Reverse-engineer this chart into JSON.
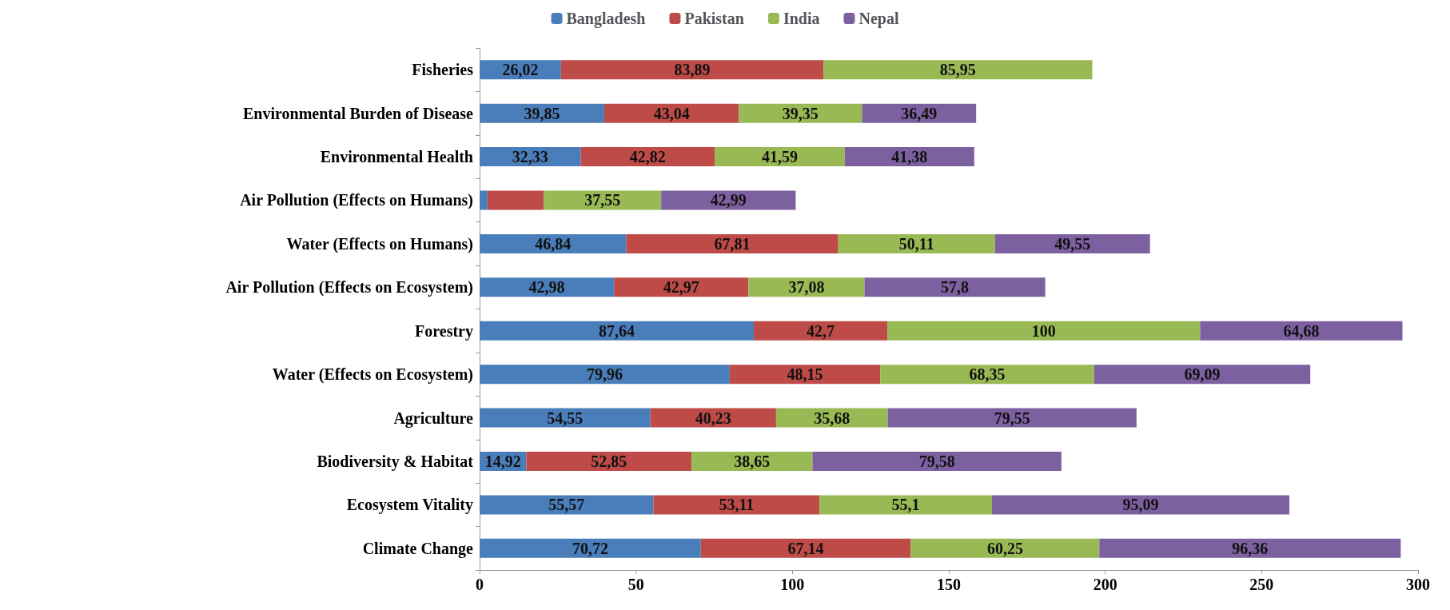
{
  "chart_data": {
    "type": "bar",
    "orientation": "horizontal",
    "stacked": true,
    "legend": "top",
    "grid": false,
    "categories": [
      "Fisheries",
      "Environmental Burden of Disease",
      "Environmental Health",
      "Air Pollution (Effects on Humans)",
      "Water (Effects on Humans)",
      "Air Pollution (Effects on Ecosystem)",
      "Forestry",
      "Water (Effects on Ecosystem)",
      "Agriculture",
      "Biodiversity & Habitat",
      "Ecosystem Vitality",
      "Climate Change"
    ],
    "xlim": [
      0,
      300
    ],
    "xticks": [
      0,
      50,
      100,
      150,
      200,
      250,
      300
    ],
    "series": [
      {
        "name": "Bangladesh",
        "color": "#4a7ebb",
        "values": [
          26.02,
          39.85,
          32.33,
          2.5,
          46.84,
          42.98,
          87.64,
          79.96,
          54.55,
          14.92,
          55.57,
          70.72
        ],
        "value_labels": [
          "26,02",
          "39,85",
          "32,33",
          null,
          "46,84",
          "42,98",
          "87,64",
          "79,96",
          "54,55",
          "14,92",
          "55,57",
          "70,72"
        ]
      },
      {
        "name": "Pakistan",
        "color": "#be4b48",
        "values": [
          83.89,
          43.04,
          42.82,
          18,
          67.81,
          42.97,
          42.7,
          48.15,
          40.23,
          52.85,
          53.11,
          67.14
        ],
        "value_labels": [
          "83,89",
          "43,04",
          "42,82",
          null,
          "67,81",
          "42,97",
          "42,7",
          "48,15",
          "40,23",
          "52,85",
          "53,11",
          "67,14"
        ]
      },
      {
        "name": "India",
        "color": "#98b954",
        "values": [
          85.95,
          39.35,
          41.59,
          37.55,
          50.11,
          37.08,
          100,
          68.35,
          35.68,
          38.65,
          55.1,
          60.25
        ],
        "value_labels": [
          "85,95",
          "39,35",
          "41,59",
          "37,55",
          "50,11",
          "37,08",
          "100",
          "68,35",
          "35,68",
          "38,65",
          "55,1",
          "60,25"
        ]
      },
      {
        "name": "Nepal",
        "color": "#7d60a0",
        "values": [
          null,
          36.49,
          41.38,
          42.99,
          49.55,
          57.8,
          64.68,
          69.09,
          79.55,
          79.58,
          95.09,
          96.36
        ],
        "value_labels": [
          null,
          "36,49",
          "41,38",
          "42,99",
          "49,55",
          "57,8",
          "64,68",
          "69,09",
          "79,55",
          "79,58",
          "95,09",
          "96,36"
        ]
      }
    ]
  }
}
